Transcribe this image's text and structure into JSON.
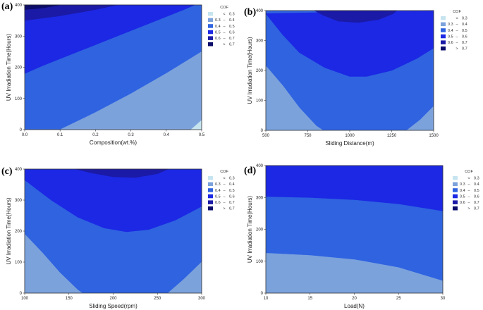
{
  "legend": {
    "title": "COF",
    "entries": [
      {
        "op": "<",
        "lo": "",
        "hi": "0.3",
        "color": "#c6e4ef"
      },
      {
        "op": "",
        "lo": "0.3",
        "hi": "0.4",
        "color": "#7ca2dc"
      },
      {
        "op": "",
        "lo": "0.4",
        "hi": "0.5",
        "color": "#2f63e0"
      },
      {
        "op": "",
        "lo": "0.5",
        "hi": "0.6",
        "color": "#1c28e4"
      },
      {
        "op": "",
        "lo": "0.6",
        "hi": "0.7",
        "color": "#1b1aa6"
      },
      {
        "op": ">",
        "lo": "",
        "hi": "0.7",
        "color": "#0c0c6a"
      }
    ],
    "dash": "–"
  },
  "chart_data": [
    {
      "id": "a",
      "panel_label": "(a)",
      "type": "contour",
      "xlabel": "Composition(wt.%)",
      "ylabel": "UV Irradiation Time(Hours)",
      "xlim": [
        0,
        0.5
      ],
      "ylim": [
        0,
        400
      ],
      "xticks": [
        0.0,
        0.1,
        0.2,
        0.3,
        0.4,
        0.5
      ],
      "xtick_labels": [
        "0.0",
        "0.1",
        "0.2",
        "0.3",
        "0.4",
        "0.5"
      ],
      "yticks": [
        0,
        100,
        200,
        300,
        400
      ],
      "ytick_labels": [
        "0",
        "100",
        "200",
        "300",
        "400"
      ],
      "background_band": 2,
      "regions": [
        {
          "band": 1,
          "points": [
            [
              0.1,
              0
            ],
            [
              0.47,
              0
            ],
            [
              0.5,
              30
            ],
            [
              0.5,
              250
            ],
            [
              0.4,
              180
            ],
            [
              0.3,
              115
            ],
            [
              0.2,
              55
            ]
          ]
        },
        {
          "band": 0,
          "points": [
            [
              0.47,
              0
            ],
            [
              0.5,
              0
            ],
            [
              0.5,
              30
            ]
          ]
        },
        {
          "band": 3,
          "points": [
            [
              0,
              180
            ],
            [
              0.05,
              205
            ],
            [
              0.15,
              250
            ],
            [
              0.25,
              295
            ],
            [
              0.35,
              340
            ],
            [
              0.45,
              385
            ],
            [
              0.48,
              400
            ],
            [
              0,
              400
            ]
          ]
        },
        {
          "band": 4,
          "points": [
            [
              0,
              350
            ],
            [
              0.1,
              365
            ],
            [
              0.2,
              385
            ],
            [
              0.26,
              400
            ],
            [
              0,
              400
            ]
          ]
        },
        {
          "band": 5,
          "points": [
            [
              0,
              385
            ],
            [
              0.05,
              390
            ],
            [
              0.1,
              400
            ],
            [
              0,
              400
            ]
          ]
        }
      ]
    },
    {
      "id": "b",
      "panel_label": "(b)",
      "type": "contour",
      "xlabel": "Sliding Distance(m)",
      "ylabel": "UV Irradiation Time(Hours)",
      "xlim": [
        500,
        1500
      ],
      "ylim": [
        0,
        400
      ],
      "xticks": [
        500,
        750,
        1000,
        1250,
        1500
      ],
      "xtick_labels": [
        "500",
        "750",
        "1000",
        "1250",
        "1500"
      ],
      "yticks": [
        0,
        100,
        200,
        300,
        400
      ],
      "ytick_labels": [
        "0",
        "100",
        "200",
        "300",
        "400"
      ],
      "background_band": 2,
      "regions": [
        {
          "band": 1,
          "points": [
            [
              500,
              215
            ],
            [
              600,
              150
            ],
            [
              700,
              75
            ],
            [
              800,
              15
            ],
            [
              840,
              0
            ],
            [
              500,
              0
            ]
          ]
        },
        {
          "band": 1,
          "points": [
            [
              1340,
              0
            ],
            [
              1420,
              35
            ],
            [
              1500,
              80
            ],
            [
              1500,
              0
            ]
          ]
        },
        {
          "band": 3,
          "points": [
            [
              500,
              390
            ],
            [
              600,
              320
            ],
            [
              700,
              260
            ],
            [
              850,
              210
            ],
            [
              1000,
              180
            ],
            [
              1100,
              180
            ],
            [
              1250,
              200
            ],
            [
              1400,
              240
            ],
            [
              1500,
              275
            ],
            [
              1500,
              400
            ]
          ]
        },
        {
          "band": 4,
          "points": [
            [
              790,
              400
            ],
            [
              840,
              385
            ],
            [
              930,
              365
            ],
            [
              1050,
              360
            ],
            [
              1170,
              370
            ],
            [
              1260,
              390
            ],
            [
              1280,
              400
            ]
          ]
        }
      ]
    },
    {
      "id": "c",
      "panel_label": "(c)",
      "type": "contour",
      "xlabel": "Sliding Speed(rpm)",
      "ylabel": "UV Irradiation Time(Hours)",
      "xlim": [
        100,
        300
      ],
      "ylim": [
        0,
        400
      ],
      "xticks": [
        100,
        150,
        200,
        250,
        300
      ],
      "xtick_labels": [
        "100",
        "150",
        "200",
        "250",
        "300"
      ],
      "yticks": [
        0,
        100,
        200,
        300,
        400
      ],
      "ytick_labels": [
        "0",
        "100",
        "200",
        "300",
        "400"
      ],
      "background_band": 2,
      "regions": [
        {
          "band": 1,
          "points": [
            [
              100,
              190
            ],
            [
              120,
              130
            ],
            [
              140,
              65
            ],
            [
              160,
              10
            ],
            [
              165,
              0
            ],
            [
              100,
              0
            ]
          ]
        },
        {
          "band": 1,
          "points": [
            [
              262,
              0
            ],
            [
              280,
              45
            ],
            [
              300,
              100
            ],
            [
              300,
              0
            ]
          ]
        },
        {
          "band": 3,
          "points": [
            [
              100,
              365
            ],
            [
              130,
              300
            ],
            [
              160,
              245
            ],
            [
              190,
              210
            ],
            [
              215,
              198
            ],
            [
              240,
              205
            ],
            [
              270,
              235
            ],
            [
              300,
              280
            ],
            [
              300,
              400
            ],
            [
              100,
              400
            ]
          ]
        },
        {
          "band": 4,
          "points": [
            [
              158,
              400
            ],
            [
              175,
              388
            ],
            [
              200,
              375
            ],
            [
              225,
              373
            ],
            [
              250,
              385
            ],
            [
              262,
              400
            ]
          ]
        }
      ]
    },
    {
      "id": "d",
      "panel_label": "(d)",
      "type": "contour",
      "xlabel": "Load(N)",
      "ylabel": "UV Irradiation Time(Hours)",
      "xlim": [
        10,
        30
      ],
      "ylim": [
        0,
        400
      ],
      "xticks": [
        10,
        15,
        20,
        25,
        30
      ],
      "xtick_labels": [
        "10",
        "15",
        "20",
        "25",
        "30"
      ],
      "yticks": [
        0,
        100,
        200,
        300,
        400
      ],
      "ytick_labels": [
        "0",
        "100",
        "200",
        "300",
        "400"
      ],
      "background_band": 2,
      "regions": [
        {
          "band": 1,
          "points": [
            [
              10,
              0
            ],
            [
              10,
              125
            ],
            [
              15,
              118
            ],
            [
              20,
              105
            ],
            [
              25,
              80
            ],
            [
              30,
              38
            ],
            [
              30,
              0
            ]
          ]
        },
        {
          "band": 3,
          "points": [
            [
              10,
              303
            ],
            [
              15,
              300
            ],
            [
              20,
              293
            ],
            [
              25,
              280
            ],
            [
              30,
              258
            ],
            [
              30,
              400
            ],
            [
              10,
              400
            ]
          ]
        }
      ]
    }
  ]
}
